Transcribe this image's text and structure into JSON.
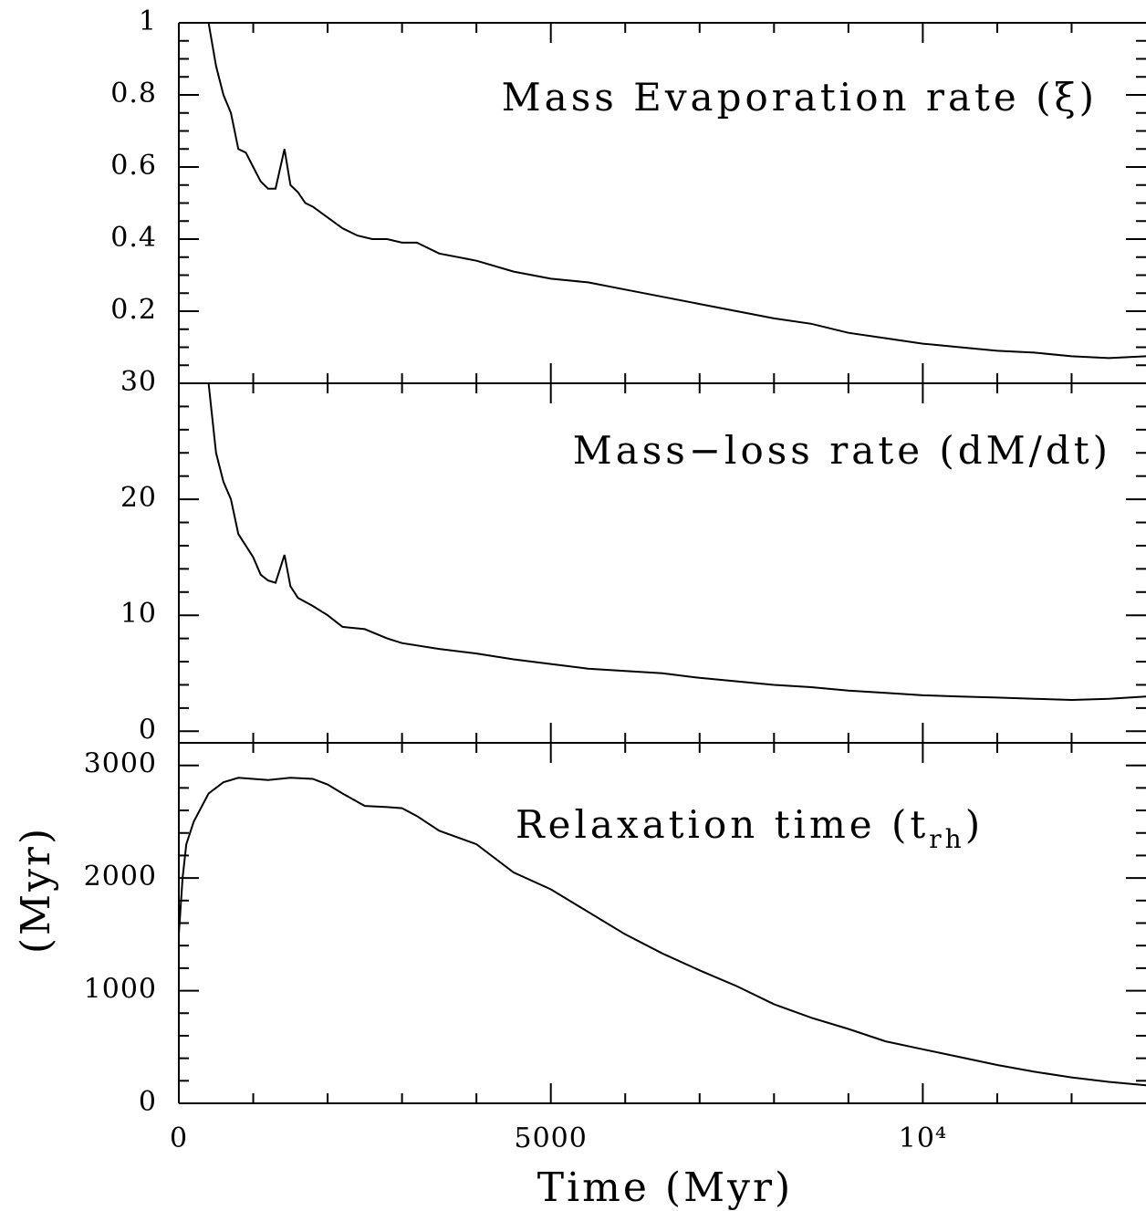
{
  "chart_data": [
    {
      "type": "line",
      "annotation": "Mass Evaporation rate (ξ)",
      "color": "#000000",
      "x": [
        400,
        500,
        600,
        700,
        800,
        900,
        1000,
        1100,
        1200,
        1300,
        1420,
        1500,
        1600,
        1700,
        1800,
        2000,
        2200,
        2400,
        2600,
        2800,
        3000,
        3200,
        3500,
        4000,
        4500,
        5000,
        5500,
        6000,
        6500,
        7000,
        7500,
        8000,
        8500,
        9000,
        9500,
        10000,
        10500,
        11000,
        11500,
        12000,
        12500,
        13000
      ],
      "values": [
        1.0,
        0.88,
        0.8,
        0.75,
        0.65,
        0.64,
        0.6,
        0.56,
        0.54,
        0.54,
        0.65,
        0.55,
        0.53,
        0.5,
        0.49,
        0.46,
        0.43,
        0.41,
        0.4,
        0.4,
        0.39,
        0.39,
        0.36,
        0.34,
        0.31,
        0.29,
        0.28,
        0.26,
        0.24,
        0.22,
        0.2,
        0.18,
        0.165,
        0.14,
        0.125,
        0.11,
        0.1,
        0.09,
        0.085,
        0.075,
        0.07,
        0.075
      ],
      "xlim": [
        0,
        13000
      ],
      "xticks": [
        0,
        5000,
        10000
      ],
      "xminorticks": [
        1000,
        2000,
        3000,
        4000,
        6000,
        7000,
        8000,
        9000,
        11000,
        12000
      ],
      "ylim": [
        0,
        1
      ],
      "yticks": [
        0.2,
        0.4,
        0.6,
        0.8,
        1
      ],
      "yminorticks": [
        0.05,
        0.1,
        0.15,
        0.25,
        0.3,
        0.35,
        0.45,
        0.5,
        0.55,
        0.65,
        0.7,
        0.75,
        0.85,
        0.9,
        0.95
      ]
    },
    {
      "type": "line",
      "annotation": "Mass−loss rate (dM/dt)",
      "color": "#000000",
      "x": [
        400,
        500,
        600,
        700,
        800,
        900,
        1000,
        1100,
        1200,
        1300,
        1420,
        1500,
        1600,
        1800,
        2000,
        2200,
        2500,
        2800,
        3000,
        3500,
        4000,
        4500,
        5000,
        5500,
        6000,
        6500,
        7000,
        7500,
        8000,
        8500,
        9000,
        9500,
        10000,
        10500,
        11000,
        11500,
        12000,
        12500,
        13000
      ],
      "values": [
        30,
        24,
        21.5,
        20,
        17,
        16,
        15,
        13.5,
        13,
        12.8,
        15.2,
        12.5,
        11.5,
        10.8,
        10,
        9,
        8.8,
        8,
        7.6,
        7.1,
        6.7,
        6.2,
        5.8,
        5.4,
        5.2,
        5.0,
        4.6,
        4.3,
        4.0,
        3.8,
        3.5,
        3.3,
        3.1,
        3.0,
        2.9,
        2.8,
        2.7,
        2.8,
        3.0
      ],
      "xlim": [
        0,
        13000
      ],
      "xticks": [
        0,
        5000,
        10000
      ],
      "xminorticks": [
        1000,
        2000,
        3000,
        4000,
        6000,
        7000,
        8000,
        9000,
        11000,
        12000
      ],
      "ylim": [
        -1,
        30
      ],
      "yticks": [
        0,
        10,
        20,
        30
      ],
      "yminorticks": [
        2,
        4,
        6,
        8,
        12,
        14,
        16,
        18,
        22,
        24,
        26,
        28
      ]
    },
    {
      "type": "line",
      "annotation": {
        "text": "Relaxation time (t",
        "sub": "rh",
        "close": ")"
      },
      "color": "#000000",
      "ylabel": "(Myr)",
      "xlabel": "Time (Myr)",
      "x": [
        0,
        50,
        100,
        200,
        400,
        600,
        800,
        1000,
        1200,
        1500,
        1800,
        2000,
        2200,
        2500,
        2800,
        3000,
        3200,
        3500,
        4000,
        4500,
        5000,
        5500,
        6000,
        6500,
        7000,
        7500,
        8000,
        8500,
        9000,
        9500,
        10000,
        10500,
        11000,
        11500,
        12000,
        12500,
        13000
      ],
      "values": [
        1500,
        2000,
        2300,
        2500,
        2750,
        2850,
        2890,
        2880,
        2870,
        2890,
        2880,
        2830,
        2750,
        2640,
        2630,
        2620,
        2550,
        2420,
        2300,
        2050,
        1900,
        1700,
        1500,
        1330,
        1180,
        1040,
        880,
        760,
        660,
        550,
        480,
        410,
        340,
        280,
        230,
        190,
        160
      ],
      "xlim": [
        0,
        13000
      ],
      "xticks": [
        0,
        5000,
        {
          "value": 10000,
          "label": "10⁴"
        }
      ],
      "xminorticks": [
        1000,
        2000,
        3000,
        4000,
        6000,
        7000,
        8000,
        9000,
        11000,
        12000
      ],
      "ylim": [
        0,
        3200
      ],
      "yticks": [
        0,
        1000,
        2000,
        3000
      ],
      "yminorticks": [
        200,
        400,
        600,
        800,
        1200,
        1400,
        1600,
        1800,
        2200,
        2400,
        2600,
        2800
      ]
    }
  ]
}
